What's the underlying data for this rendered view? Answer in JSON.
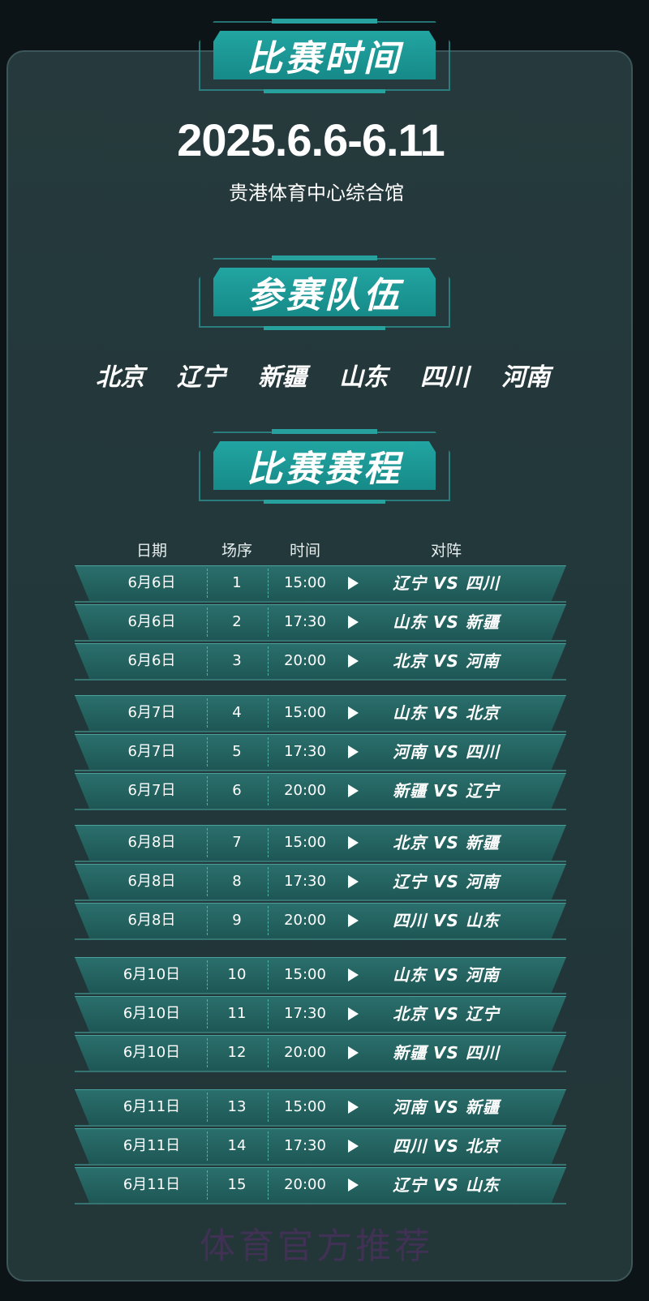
{
  "sections": {
    "time_title": "比赛时间",
    "teams_title": "参赛队伍",
    "schedule_title": "比赛赛程"
  },
  "event": {
    "date_range": "2025.6.6-6.11",
    "venue": "贵港体育中心综合馆"
  },
  "teams": [
    "北京",
    "辽宁",
    "新疆",
    "山东",
    "四川",
    "河南"
  ],
  "schedule": {
    "headers": {
      "date": "日期",
      "seq": "场序",
      "time": "时间",
      "match": "对阵"
    },
    "vs_label": "VS",
    "rows": [
      {
        "date": "6月6日",
        "seq": "1",
        "time": "15:00",
        "home": "辽宁",
        "away": "四川"
      },
      {
        "date": "6月6日",
        "seq": "2",
        "time": "17:30",
        "home": "山东",
        "away": "新疆"
      },
      {
        "date": "6月6日",
        "seq": "3",
        "time": "20:00",
        "home": "北京",
        "away": "河南"
      },
      {
        "date": "6月7日",
        "seq": "4",
        "time": "15:00",
        "home": "山东",
        "away": "北京"
      },
      {
        "date": "6月7日",
        "seq": "5",
        "time": "17:30",
        "home": "河南",
        "away": "四川"
      },
      {
        "date": "6月7日",
        "seq": "6",
        "time": "20:00",
        "home": "新疆",
        "away": "辽宁"
      },
      {
        "date": "6月8日",
        "seq": "7",
        "time": "15:00",
        "home": "北京",
        "away": "新疆"
      },
      {
        "date": "6月8日",
        "seq": "8",
        "time": "17:30",
        "home": "辽宁",
        "away": "河南"
      },
      {
        "date": "6月8日",
        "seq": "9",
        "time": "20:00",
        "home": "四川",
        "away": "山东"
      },
      {
        "date": "6月10日",
        "seq": "10",
        "time": "15:00",
        "home": "山东",
        "away": "河南"
      },
      {
        "date": "6月10日",
        "seq": "11",
        "time": "17:30",
        "home": "北京",
        "away": "辽宁"
      },
      {
        "date": "6月10日",
        "seq": "12",
        "time": "20:00",
        "home": "新疆",
        "away": "四川"
      },
      {
        "date": "6月11日",
        "seq": "13",
        "time": "15:00",
        "home": "河南",
        "away": "新疆"
      },
      {
        "date": "6月11日",
        "seq": "14",
        "time": "17:30",
        "home": "四川",
        "away": "北京"
      },
      {
        "date": "6月11日",
        "seq": "15",
        "time": "20:00",
        "home": "辽宁",
        "away": "山东"
      }
    ]
  },
  "watermark": "体育官方推荐",
  "colors": {
    "accent": "#1f9e9b",
    "background": "#0d1417",
    "panel": "#24383b"
  }
}
